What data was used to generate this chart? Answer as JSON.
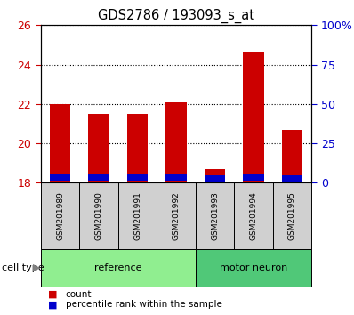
{
  "title": "GDS2786 / 193093_s_at",
  "samples": [
    "GSM201989",
    "GSM201990",
    "GSM201991",
    "GSM201992",
    "GSM201993",
    "GSM201994",
    "GSM201995"
  ],
  "count_values": [
    22.0,
    21.5,
    21.5,
    22.1,
    18.7,
    24.6,
    20.7
  ],
  "percentile_bottom": [
    18.1,
    18.1,
    18.1,
    18.1,
    18.05,
    18.1,
    18.05
  ],
  "percentile_height": [
    0.32,
    0.32,
    0.32,
    0.32,
    0.32,
    0.32,
    0.32
  ],
  "bar_bottom": 18.0,
  "ylim_left": [
    18,
    26
  ],
  "ylim_right": [
    0,
    100
  ],
  "yticks_left": [
    18,
    20,
    22,
    24,
    26
  ],
  "yticks_right": [
    0,
    25,
    50,
    75,
    100
  ],
  "ytick_labels_right": [
    "0",
    "25",
    "50",
    "75",
    "100%"
  ],
  "groups": [
    {
      "label": "reference",
      "start": 0,
      "end": 4,
      "color": "#90ee90"
    },
    {
      "label": "motor neuron",
      "start": 4,
      "end": 7,
      "color": "#50c878"
    }
  ],
  "cell_type_label": "cell type",
  "legend_count_color": "#cc0000",
  "legend_percentile_color": "#0000cc",
  "bar_color_red": "#cc0000",
  "bar_color_blue": "#0000cc",
  "grid_color": "black",
  "tick_label_color_left": "#cc0000",
  "tick_label_color_right": "#0000cc",
  "sample_box_color": "#d0d0d0",
  "plot_bg": "white"
}
